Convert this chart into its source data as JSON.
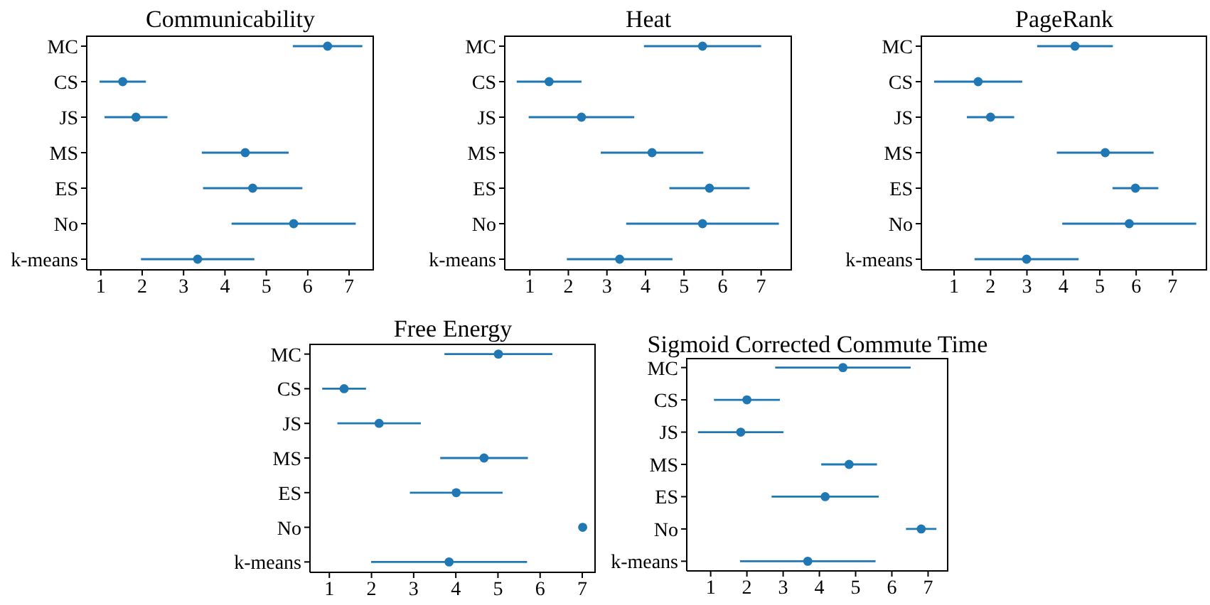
{
  "chart_data": [
    {
      "type": "scatter",
      "title": "Communicability",
      "orientation": "horizontal",
      "marker": "circle",
      "color": "#1f77b4",
      "categories": [
        "MC",
        "CS",
        "JS",
        "MS",
        "ES",
        "No",
        "k-means"
      ],
      "values": [
        6.48,
        1.53,
        1.85,
        4.49,
        4.67,
        5.66,
        3.34
      ],
      "errors": [
        0.84,
        0.56,
        0.76,
        1.05,
        1.2,
        1.5,
        1.37
      ],
      "xlim": [
        0.66,
        7.6
      ],
      "xticks": [
        1,
        2,
        3,
        4,
        5,
        6,
        7
      ]
    },
    {
      "type": "scatter",
      "title": "Heat",
      "orientation": "horizontal",
      "marker": "circle",
      "color": "#1f77b4",
      "categories": [
        "MC",
        "CS",
        "JS",
        "MS",
        "ES",
        "No",
        "k-means"
      ],
      "values": [
        5.48,
        1.5,
        2.34,
        4.17,
        5.66,
        5.48,
        3.33
      ],
      "errors": [
        1.52,
        0.84,
        1.37,
        1.33,
        1.04,
        1.98,
        1.37
      ],
      "xlim": [
        0.35,
        7.8
      ],
      "xticks": [
        1,
        2,
        3,
        4,
        5,
        6,
        7
      ]
    },
    {
      "type": "scatter",
      "title": "PageRank",
      "orientation": "horizontal",
      "marker": "circle",
      "color": "#1f77b4",
      "categories": [
        "MC",
        "CS",
        "JS",
        "MS",
        "ES",
        "No",
        "k-means"
      ],
      "values": [
        4.32,
        1.66,
        2.0,
        5.15,
        5.98,
        5.81,
        2.99
      ],
      "errors": [
        1.04,
        1.21,
        0.65,
        1.33,
        0.63,
        1.84,
        1.43
      ],
      "xlim": [
        0.1,
        7.95
      ],
      "xticks": [
        1,
        2,
        3,
        4,
        5,
        6,
        7
      ]
    },
    {
      "type": "scatter",
      "title": "Free Energy",
      "orientation": "horizontal",
      "marker": "circle",
      "color": "#1f77b4",
      "categories": [
        "MC",
        "CS",
        "JS",
        "MS",
        "ES",
        "No",
        "k-means"
      ],
      "values": [
        5.01,
        1.35,
        2.18,
        4.67,
        4.01,
        7.01,
        3.84
      ],
      "errors": [
        1.28,
        0.52,
        0.99,
        1.04,
        1.1,
        null,
        1.85
      ],
      "xlim": [
        0.54,
        7.32
      ],
      "xticks": [
        1,
        2,
        3,
        4,
        5,
        6,
        7
      ]
    },
    {
      "type": "scatter",
      "title": "Sigmoid Corrected Commute Time",
      "orientation": "horizontal",
      "marker": "circle",
      "color": "#1f77b4",
      "categories": [
        "MC",
        "CS",
        "JS",
        "MS",
        "ES",
        "No",
        "k-means"
      ],
      "values": [
        4.65,
        2.0,
        1.83,
        4.82,
        4.16,
        6.81,
        3.68
      ],
      "errors": [
        1.87,
        0.91,
        1.18,
        0.77,
        1.48,
        0.42,
        1.87
      ],
      "xlim": [
        0.34,
        7.56
      ],
      "xticks": [
        1,
        2,
        3,
        4,
        5,
        6,
        7
      ]
    }
  ]
}
